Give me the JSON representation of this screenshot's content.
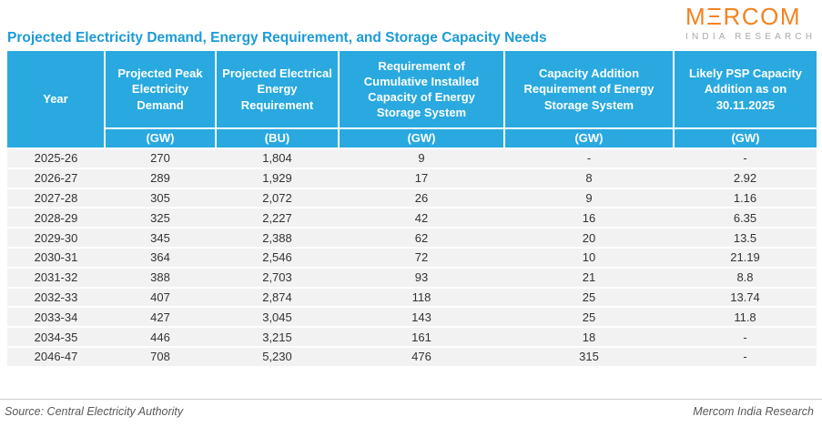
{
  "title": "Projected Electricity Demand, Energy Requirement, and Storage Capacity Needs",
  "logo": {
    "brand": "MΞRCOM",
    "subtitle": "INDIA RESEARCH",
    "brand_color": "#F58220",
    "subtitle_color": "#A9A9A9"
  },
  "colors": {
    "header_bg": "#29A9E0",
    "title_text": "#1C9BD8",
    "row_bg": "#F2F2F2",
    "body_text": "#333333"
  },
  "chart_data": {
    "type": "table",
    "title": "Projected Electricity Demand, Energy Requirement, and Storage Capacity Needs",
    "columns": [
      {
        "label": "Year",
        "unit": ""
      },
      {
        "label": "Projected Peak Electricity Demand",
        "unit": "(GW)"
      },
      {
        "label": "Projected Electrical Energy Requirement",
        "unit": "(BU)"
      },
      {
        "label": "Requirement of Cumulative Installed Capacity of Energy Storage System",
        "unit": "(GW)"
      },
      {
        "label": "Capacity Addition Requirement of Energy Storage System",
        "unit": "(GW)"
      },
      {
        "label": "Likely PSP Capacity Addition as on 30.11.2025",
        "unit": "(GW)"
      }
    ],
    "rows": [
      [
        "2025-26",
        "270",
        "1,804",
        "9",
        "-",
        "-"
      ],
      [
        "2026-27",
        "289",
        "1,929",
        "17",
        "8",
        "2.92"
      ],
      [
        "2027-28",
        "305",
        "2,072",
        "26",
        "9",
        "1.16"
      ],
      [
        "2028-29",
        "325",
        "2,227",
        "42",
        "16",
        "6.35"
      ],
      [
        "2029-30",
        "345",
        "2,388",
        "62",
        "20",
        "13.5"
      ],
      [
        "2030-31",
        "364",
        "2,546",
        "72",
        "10",
        "21.19"
      ],
      [
        "2031-32",
        "388",
        "2,703",
        "93",
        "21",
        "8.8"
      ],
      [
        "2032-33",
        "407",
        "2,874",
        "118",
        "25",
        "13.74"
      ],
      [
        "2033-34",
        "427",
        "3,045",
        "143",
        "25",
        "11.8"
      ],
      [
        "2034-35",
        "446",
        "3,215",
        "161",
        "18",
        "-"
      ],
      [
        "2046-47",
        "708",
        "5,230",
        "476",
        "315",
        "-"
      ]
    ]
  },
  "footer": {
    "source": "Source: Central Electricity Authority",
    "attribution": "Mercom India Research"
  }
}
